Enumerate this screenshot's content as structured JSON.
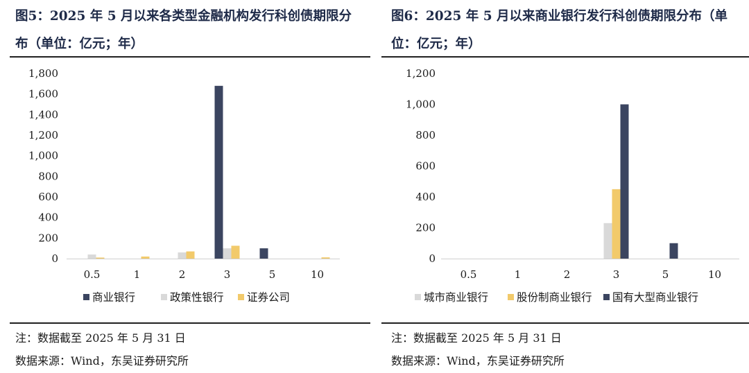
{
  "panels": [
    {
      "title": "图5：2025 年 5 月以来各类型金融机构发行科创债期限分布（单位：亿元；年）",
      "note": "注：数据截至 2025 年 5 月 31 日",
      "source": "数据来源：Wind，东吴证券研究所"
    },
    {
      "title": "图6：2025 年 5 月以来商业银行发行科创债期限分布（单位：亿元；年）",
      "note": "注：数据截至 2025 年 5 月 31 日",
      "source": "数据来源：Wind，东吴证券研究所"
    }
  ],
  "chart_data": [
    {
      "type": "bar",
      "title": "图5：2025 年 5 月以来各类型金融机构发行科创债期限分布（单位：亿元；年）",
      "xlabel": "",
      "ylabel": "",
      "categories": [
        "0.5",
        "1",
        "2",
        "3",
        "5",
        "10"
      ],
      "ylim": [
        0,
        1800
      ],
      "yticks": [
        0,
        200,
        400,
        600,
        800,
        1000,
        1200,
        1400,
        1600,
        1800
      ],
      "ytick_labels": [
        "0",
        "200",
        "400",
        "600",
        "800",
        "1,000",
        "1,200",
        "1,400",
        "1,600",
        "1,800"
      ],
      "grid": false,
      "legend": "bottom",
      "series": [
        {
          "name": "商业银行",
          "color": "#3b4560",
          "values": [
            0,
            0,
            0,
            1680,
            100,
            0
          ]
        },
        {
          "name": "政策性银行",
          "color": "#d9d9d9",
          "values": [
            40,
            0,
            60,
            100,
            0,
            0
          ]
        },
        {
          "name": "证券公司",
          "color": "#f2ca6b",
          "values": [
            10,
            20,
            70,
            125,
            0,
            12
          ]
        }
      ]
    },
    {
      "type": "bar",
      "title": "图6：2025 年 5 月以来商业银行发行科创债期限分布（单位：亿元；年）",
      "xlabel": "",
      "ylabel": "",
      "categories": [
        "0.5",
        "1",
        "2",
        "3",
        "5",
        "10"
      ],
      "ylim": [
        0,
        1200
      ],
      "yticks": [
        0,
        200,
        400,
        600,
        800,
        1000,
        1200
      ],
      "ytick_labels": [
        "0",
        "200",
        "400",
        "600",
        "800",
        "1,000",
        "1,200"
      ],
      "grid": false,
      "legend": "bottom",
      "series": [
        {
          "name": "城市商业银行",
          "color": "#d9d9d9",
          "values": [
            0,
            0,
            0,
            230,
            0,
            0
          ]
        },
        {
          "name": "股份制商业银行",
          "color": "#f2ca6b",
          "values": [
            0,
            0,
            0,
            450,
            0,
            0
          ]
        },
        {
          "name": "国有大型商业银行",
          "color": "#3b4560",
          "values": [
            0,
            0,
            0,
            1000,
            100,
            0
          ]
        }
      ]
    }
  ]
}
